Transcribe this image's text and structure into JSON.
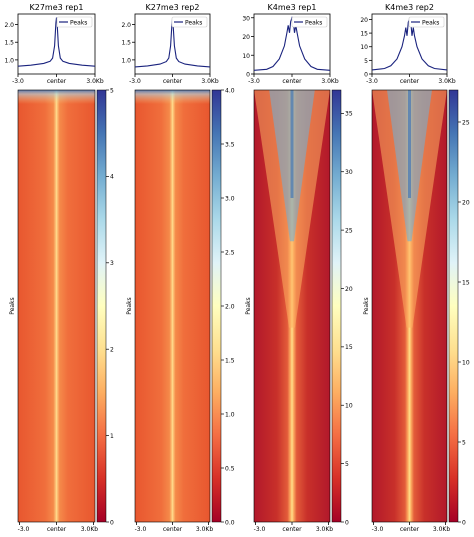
{
  "chart_data": [
    {
      "type": "line",
      "title": "K27me3 rep1",
      "x": [
        "-3.0",
        "center",
        "3.0Kb"
      ],
      "xlim": [
        -3,
        3
      ],
      "ylim": [
        0.6,
        2.3
      ],
      "yticks": [
        "1.0",
        "1.5",
        "2.0"
      ],
      "series": [
        {
          "name": "Peaks",
          "color": "#1a237e",
          "x": [
            -3,
            -2,
            -1,
            -0.5,
            -0.3,
            -0.15,
            -0.05,
            0,
            0.05,
            0.15,
            0.3,
            0.5,
            1,
            2,
            3
          ],
          "values": [
            0.82,
            0.85,
            0.9,
            0.96,
            1.05,
            1.4,
            2.05,
            2.2,
            2.05,
            1.4,
            1.05,
            0.96,
            0.9,
            0.85,
            0.82
          ]
        }
      ],
      "legend": "top-right",
      "heatmap": {
        "colormap": "RdYlBu",
        "vmin": 0,
        "vmax": 5,
        "colorbar_ticks": [
          "0",
          "1",
          "2",
          "3",
          "4",
          "5"
        ],
        "ylabel": "Peaks",
        "xticks": [
          "-3.0",
          "center",
          "3.0Kb"
        ]
      }
    },
    {
      "type": "line",
      "title": "K27me3 rep2",
      "x": [
        "-3.0",
        "center",
        "3.0Kb"
      ],
      "xlim": [
        -3,
        3
      ],
      "ylim": [
        0.6,
        2.3
      ],
      "yticks": [
        "1.0",
        "1.5",
        "2.0"
      ],
      "series": [
        {
          "name": "Peaks",
          "color": "#1a237e",
          "x": [
            -3,
            -2,
            -1,
            -0.5,
            -0.3,
            -0.15,
            -0.05,
            0,
            0.05,
            0.15,
            0.3,
            0.5,
            1,
            2,
            3
          ],
          "values": [
            0.8,
            0.83,
            0.88,
            0.95,
            1.05,
            1.4,
            2.0,
            2.15,
            2.0,
            1.4,
            1.05,
            0.95,
            0.88,
            0.83,
            0.8
          ]
        }
      ],
      "legend": "top-right",
      "heatmap": {
        "colormap": "RdYlBu",
        "vmin": 0,
        "vmax": 4,
        "colorbar_ticks": [
          "0.0",
          "0.5",
          "1.0",
          "1.5",
          "2.0",
          "2.5",
          "3.0",
          "3.5",
          "4.0"
        ],
        "ylabel": "Peaks",
        "xticks": [
          "-3.0",
          "center",
          "3.0Kb"
        ]
      }
    },
    {
      "type": "line",
      "title": "K4me3 rep1",
      "x": [
        "-3.0",
        "center",
        "3.0Kb"
      ],
      "xlim": [
        -3,
        3
      ],
      "ylim": [
        0,
        32
      ],
      "yticks": [
        "0",
        "10",
        "20",
        "30"
      ],
      "series": [
        {
          "name": "Peaks",
          "color": "#1a237e",
          "x": [
            -3,
            -2,
            -1.5,
            -1,
            -0.6,
            -0.4,
            -0.3,
            -0.2,
            -0.1,
            0,
            0.1,
            0.2,
            0.3,
            0.4,
            0.6,
            1,
            1.5,
            2,
            3
          ],
          "values": [
            2,
            2.5,
            4,
            8,
            15,
            22,
            26,
            22,
            28,
            30,
            28,
            22,
            26,
            22,
            15,
            8,
            4,
            2.5,
            2
          ]
        }
      ],
      "legend": "top-right",
      "heatmap": {
        "colormap": "RdYlBu",
        "vmin": 0,
        "vmax": 37,
        "colorbar_ticks": [
          "0",
          "5",
          "10",
          "15",
          "20",
          "25",
          "30",
          "35"
        ],
        "ylabel": "Peaks",
        "xticks": [
          "-3.0",
          "center",
          "3.0Kb"
        ]
      }
    },
    {
      "type": "line",
      "title": "K4me3 rep2",
      "x": [
        "-3.0",
        "center",
        "3.0Kb"
      ],
      "xlim": [
        -3,
        3
      ],
      "ylim": [
        0,
        22
      ],
      "yticks": [
        "0",
        "5",
        "10",
        "15",
        "20"
      ],
      "series": [
        {
          "name": "Peaks",
          "color": "#1a237e",
          "x": [
            -3,
            -2,
            -1.5,
            -1,
            -0.6,
            -0.4,
            -0.3,
            -0.2,
            -0.1,
            0,
            0.1,
            0.2,
            0.3,
            0.4,
            0.6,
            1,
            1.5,
            2,
            3
          ],
          "values": [
            1.5,
            2,
            3,
            5.5,
            10,
            14,
            17,
            14,
            19,
            20,
            19,
            14,
            17,
            14,
            10,
            5.5,
            3,
            2,
            1.5
          ]
        }
      ],
      "legend": "top-right",
      "heatmap": {
        "colormap": "RdYlBu",
        "vmin": 0,
        "vmax": 27,
        "colorbar_ticks": [
          "0",
          "5",
          "10",
          "15",
          "20",
          "25"
        ],
        "ylabel": "Peaks",
        "xticks": [
          "-3.0",
          "center",
          "3.0Kb"
        ]
      }
    }
  ]
}
